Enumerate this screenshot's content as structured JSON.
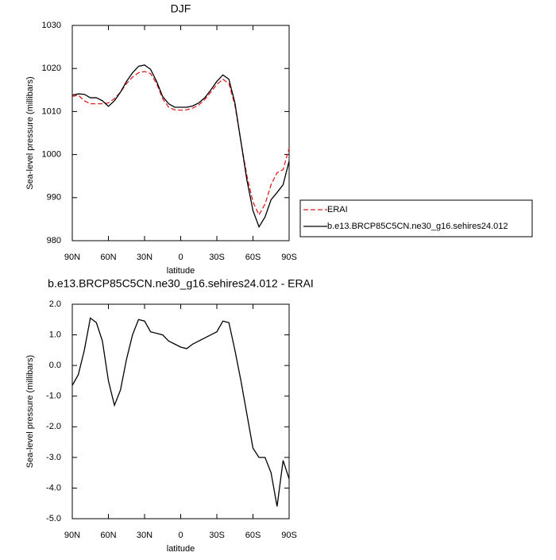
{
  "chart_data": [
    {
      "type": "line",
      "title": "DJF",
      "x_label": "latitude",
      "y_label": "Sea-level pressure (millibars)",
      "x": [
        90,
        85,
        80,
        75,
        70,
        65,
        60,
        55,
        50,
        45,
        40,
        35,
        30,
        25,
        20,
        15,
        10,
        5,
        0,
        -5,
        -10,
        -15,
        -20,
        -25,
        -30,
        -35,
        -40,
        -45,
        -50,
        -55,
        -60,
        -65,
        -70,
        -75,
        -80,
        -85,
        -90
      ],
      "series": [
        {
          "name": "ERAI",
          "color": "#e02020",
          "linestyle": "dashed",
          "values": [
            1013.5,
            1013.8,
            1012.5,
            1011.8,
            1011.8,
            1011.8,
            1012,
            1013,
            1014.5,
            1016.5,
            1018,
            1019,
            1019.3,
            1018.8,
            1016.5,
            1013,
            1011,
            1010.4,
            1010.3,
            1010.4,
            1010.8,
            1011.5,
            1012.8,
            1014.5,
            1016.3,
            1017.5,
            1016.5,
            1011.5,
            1003,
            995,
            989,
            986,
            988.5,
            993,
            995.8,
            996.5,
            1001.5
          ]
        },
        {
          "name": "b.e13.BRCP85C5CN.ne30_g16.sehires24.012",
          "color": "#000000",
          "linestyle": "solid",
          "values": [
            1013.8,
            1014.1,
            1014,
            1013.2,
            1013.2,
            1012.5,
            1011.2,
            1012.5,
            1014.5,
            1017,
            1019,
            1020.5,
            1020.8,
            1019.8,
            1017,
            1013.5,
            1011.8,
            1011,
            1011,
            1011,
            1011.3,
            1012,
            1013.2,
            1015,
            1017,
            1018.5,
            1017.5,
            1012,
            1003,
            994,
            987,
            983.2,
            985.5,
            989.5,
            991.2,
            993,
            998.5
          ]
        }
      ],
      "xlim": [
        90,
        -90
      ],
      "xticks": [
        {
          "value": 90,
          "label": "90N"
        },
        {
          "value": 60,
          "label": "60N"
        },
        {
          "value": 30,
          "label": "30N"
        },
        0,
        {
          "value": -30,
          "label": "30S"
        },
        {
          "value": -60,
          "label": "60S"
        },
        {
          "value": -90,
          "label": "90S"
        }
      ],
      "ylim": [
        980,
        1030
      ],
      "yticks": [
        980,
        990,
        1000,
        1010,
        1020,
        1030
      ],
      "legend": true
    },
    {
      "type": "line",
      "title": "b.e13.BRCP85C5CN.ne30_g16.sehires24.012 - ERAI",
      "x_label": "latitude",
      "y_label": "Sea-level pressure (millibars)",
      "x": [
        90,
        85,
        80,
        75,
        70,
        65,
        60,
        55,
        50,
        45,
        40,
        35,
        30,
        25,
        20,
        15,
        10,
        5,
        0,
        -5,
        -10,
        -15,
        -20,
        -25,
        -30,
        -35,
        -40,
        -45,
        -50,
        -55,
        -60,
        -65,
        -70,
        -75,
        -80,
        -85,
        -90
      ],
      "series": [
        {
          "color": "#000000",
          "linestyle": "solid",
          "values": [
            -0.65,
            -0.3,
            0.5,
            1.55,
            1.4,
            0.8,
            -0.5,
            -1.3,
            -0.8,
            0.2,
            1.0,
            1.5,
            1.45,
            1.1,
            1.05,
            1.0,
            0.8,
            0.7,
            0.6,
            0.55,
            0.7,
            0.8,
            0.9,
            1.0,
            1.1,
            1.45,
            1.4,
            0.5,
            -0.5,
            -1.6,
            -2.7,
            -3.0,
            -3.0,
            -3.5,
            -4.6,
            -3.1,
            -3.7
          ]
        }
      ],
      "xlim": [
        90,
        -90
      ],
      "xticks": [
        {
          "value": 90,
          "label": "90N"
        },
        {
          "value": 60,
          "label": "60N"
        },
        {
          "value": 30,
          "label": "30N"
        },
        0,
        {
          "value": -30,
          "label": "30S"
        },
        {
          "value": -60,
          "label": "60S"
        },
        {
          "value": -90,
          "label": "90S"
        }
      ],
      "ylim": [
        -5,
        2
      ],
      "yticks": [
        {
          "value": -5,
          "label": "-5.0"
        },
        {
          "value": -4,
          "label": "-4.0"
        },
        {
          "value": -3,
          "label": "-3.0"
        },
        {
          "value": -2,
          "label": "-2.0"
        },
        {
          "value": -1,
          "label": "-1.0"
        },
        {
          "value": 0,
          "label": "0.0"
        },
        {
          "value": 1,
          "label": "1.0"
        },
        {
          "value": 2,
          "label": "2.0"
        }
      ],
      "legend": false
    }
  ]
}
